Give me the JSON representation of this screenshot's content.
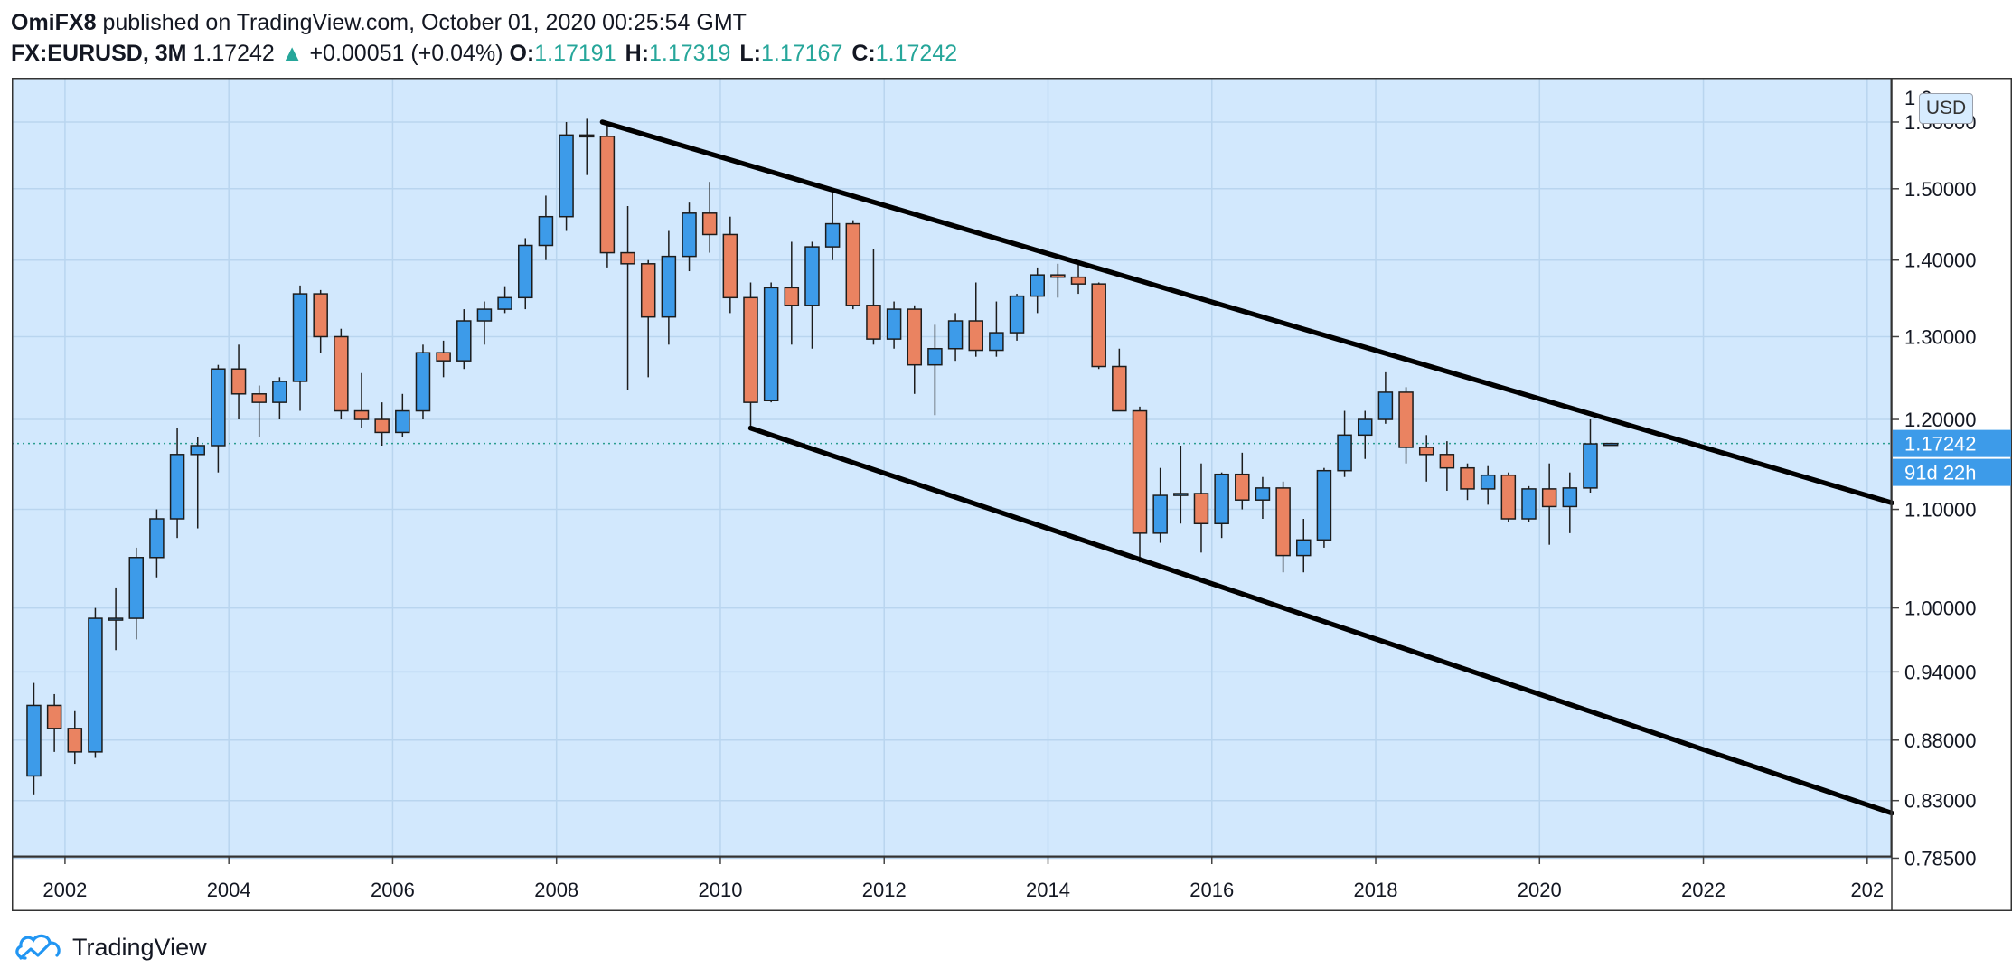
{
  "header": {
    "author": "OmiFX8",
    "published": "published on TradingView.com, October 01, 2020 00:25:54 GMT",
    "symbol": "FX:EURUSD, 3M",
    "price": "1.17242",
    "change_arrow": "▲",
    "change": "+0.00051 (+0.04%)",
    "ohlc": [
      {
        "key": "O:",
        "value": "1.17191"
      },
      {
        "key": "H:",
        "value": "1.17319"
      },
      {
        "key": "L:",
        "value": "1.17167"
      },
      {
        "key": "C:",
        "value": "1.17242"
      }
    ]
  },
  "brand": {
    "name": "TradingView",
    "icon": "tradingview-cloud-logo-icon"
  },
  "colors": {
    "background": "#d2e8fd",
    "grid": "#b9d5ef",
    "up": "#3d9be9",
    "down": "#ea8361",
    "wick": "#1c1c1c",
    "price_line": "#2a9d8f",
    "price_label": "#3d9be9",
    "trendline": "#000000"
  },
  "chart_data": {
    "type": "candlestick",
    "scale": "log",
    "currency_label": "USD",
    "last_price_label": "1.17242",
    "countdown_label": "91d 22h",
    "x_ticks": [
      "2002",
      "2004",
      "2006",
      "2008",
      "2010",
      "2012",
      "2014",
      "2016",
      "2018",
      "2020",
      "2022",
      "202"
    ],
    "y_ticks": [
      "1.60000",
      "1.50000",
      "1.40000",
      "1.30000",
      "1.20000",
      "1.10000",
      "1.00000",
      "0.94000",
      "0.88000",
      "0.83000",
      "0.78500"
    ],
    "y_top_partial_tick": "1 0",
    "xlim": [
      2001.35,
      2024.3
    ],
    "ylim": [
      0.786,
      1.67
    ],
    "candles": [
      {
        "t": 2001.62,
        "o": 0.85,
        "h": 0.93,
        "l": 0.835,
        "c": 0.91
      },
      {
        "t": 2001.87,
        "o": 0.91,
        "h": 0.92,
        "l": 0.87,
        "c": 0.89
      },
      {
        "t": 2002.12,
        "o": 0.89,
        "h": 0.905,
        "l": 0.86,
        "c": 0.87
      },
      {
        "t": 2002.37,
        "o": 0.87,
        "h": 1.0,
        "l": 0.865,
        "c": 0.99
      },
      {
        "t": 2002.62,
        "o": 0.99,
        "h": 1.02,
        "l": 0.96,
        "c": 0.99
      },
      {
        "t": 2002.87,
        "o": 0.99,
        "h": 1.06,
        "l": 0.97,
        "c": 1.05
      },
      {
        "t": 2003.12,
        "o": 1.05,
        "h": 1.1,
        "l": 1.03,
        "c": 1.09
      },
      {
        "t": 2003.37,
        "o": 1.09,
        "h": 1.19,
        "l": 1.07,
        "c": 1.16
      },
      {
        "t": 2003.62,
        "o": 1.16,
        "h": 1.18,
        "l": 1.08,
        "c": 1.17
      },
      {
        "t": 2003.87,
        "o": 1.17,
        "h": 1.265,
        "l": 1.14,
        "c": 1.26
      },
      {
        "t": 2004.12,
        "o": 1.26,
        "h": 1.29,
        "l": 1.2,
        "c": 1.23
      },
      {
        "t": 2004.37,
        "o": 1.23,
        "h": 1.24,
        "l": 1.18,
        "c": 1.22
      },
      {
        "t": 2004.62,
        "o": 1.22,
        "h": 1.25,
        "l": 1.2,
        "c": 1.245
      },
      {
        "t": 2004.87,
        "o": 1.245,
        "h": 1.366,
        "l": 1.21,
        "c": 1.355
      },
      {
        "t": 2005.12,
        "o": 1.355,
        "h": 1.36,
        "l": 1.28,
        "c": 1.3
      },
      {
        "t": 2005.37,
        "o": 1.3,
        "h": 1.31,
        "l": 1.2,
        "c": 1.21
      },
      {
        "t": 2005.62,
        "o": 1.21,
        "h": 1.255,
        "l": 1.19,
        "c": 1.2
      },
      {
        "t": 2005.87,
        "o": 1.2,
        "h": 1.22,
        "l": 1.17,
        "c": 1.185
      },
      {
        "t": 2006.12,
        "o": 1.185,
        "h": 1.23,
        "l": 1.18,
        "c": 1.21
      },
      {
        "t": 2006.37,
        "o": 1.21,
        "h": 1.29,
        "l": 1.2,
        "c": 1.28
      },
      {
        "t": 2006.62,
        "o": 1.28,
        "h": 1.295,
        "l": 1.25,
        "c": 1.27
      },
      {
        "t": 2006.87,
        "o": 1.27,
        "h": 1.335,
        "l": 1.26,
        "c": 1.32
      },
      {
        "t": 2007.12,
        "o": 1.32,
        "h": 1.345,
        "l": 1.29,
        "c": 1.335
      },
      {
        "t": 2007.37,
        "o": 1.335,
        "h": 1.365,
        "l": 1.33,
        "c": 1.35
      },
      {
        "t": 2007.62,
        "o": 1.35,
        "h": 1.43,
        "l": 1.335,
        "c": 1.42
      },
      {
        "t": 2007.87,
        "o": 1.42,
        "h": 1.49,
        "l": 1.4,
        "c": 1.46
      },
      {
        "t": 2008.12,
        "o": 1.46,
        "h": 1.6,
        "l": 1.44,
        "c": 1.58
      },
      {
        "t": 2008.37,
        "o": 1.58,
        "h": 1.605,
        "l": 1.52,
        "c": 1.578
      },
      {
        "t": 2008.62,
        "o": 1.578,
        "h": 1.6,
        "l": 1.39,
        "c": 1.41
      },
      {
        "t": 2008.87,
        "o": 1.41,
        "h": 1.475,
        "l": 1.235,
        "c": 1.395
      },
      {
        "t": 2009.12,
        "o": 1.395,
        "h": 1.4,
        "l": 1.25,
        "c": 1.325
      },
      {
        "t": 2009.37,
        "o": 1.325,
        "h": 1.44,
        "l": 1.29,
        "c": 1.405
      },
      {
        "t": 2009.62,
        "o": 1.405,
        "h": 1.48,
        "l": 1.385,
        "c": 1.465
      },
      {
        "t": 2009.87,
        "o": 1.465,
        "h": 1.51,
        "l": 1.41,
        "c": 1.435
      },
      {
        "t": 2010.12,
        "o": 1.435,
        "h": 1.46,
        "l": 1.33,
        "c": 1.35
      },
      {
        "t": 2010.37,
        "o": 1.35,
        "h": 1.37,
        "l": 1.19,
        "c": 1.22
      },
      {
        "t": 2010.62,
        "o": 1.222,
        "h": 1.37,
        "l": 1.22,
        "c": 1.363
      },
      {
        "t": 2010.87,
        "o": 1.363,
        "h": 1.425,
        "l": 1.29,
        "c": 1.34
      },
      {
        "t": 2011.12,
        "o": 1.34,
        "h": 1.425,
        "l": 1.285,
        "c": 1.418
      },
      {
        "t": 2011.37,
        "o": 1.418,
        "h": 1.495,
        "l": 1.4,
        "c": 1.45
      },
      {
        "t": 2011.62,
        "o": 1.45,
        "h": 1.455,
        "l": 1.335,
        "c": 1.34
      },
      {
        "t": 2011.87,
        "o": 1.34,
        "h": 1.415,
        "l": 1.29,
        "c": 1.297
      },
      {
        "t": 2012.12,
        "o": 1.297,
        "h": 1.345,
        "l": 1.285,
        "c": 1.335
      },
      {
        "t": 2012.37,
        "o": 1.335,
        "h": 1.34,
        "l": 1.23,
        "c": 1.265
      },
      {
        "t": 2012.62,
        "o": 1.265,
        "h": 1.315,
        "l": 1.205,
        "c": 1.285
      },
      {
        "t": 2012.87,
        "o": 1.285,
        "h": 1.33,
        "l": 1.27,
        "c": 1.32
      },
      {
        "t": 2013.12,
        "o": 1.32,
        "h": 1.37,
        "l": 1.275,
        "c": 1.283
      },
      {
        "t": 2013.37,
        "o": 1.283,
        "h": 1.345,
        "l": 1.275,
        "c": 1.305
      },
      {
        "t": 2013.62,
        "o": 1.305,
        "h": 1.355,
        "l": 1.295,
        "c": 1.352
      },
      {
        "t": 2013.87,
        "o": 1.352,
        "h": 1.39,
        "l": 1.33,
        "c": 1.38
      },
      {
        "t": 2014.12,
        "o": 1.38,
        "h": 1.395,
        "l": 1.35,
        "c": 1.377
      },
      {
        "t": 2014.37,
        "o": 1.377,
        "h": 1.398,
        "l": 1.355,
        "c": 1.368
      },
      {
        "t": 2014.62,
        "o": 1.368,
        "h": 1.37,
        "l": 1.26,
        "c": 1.263
      },
      {
        "t": 2014.87,
        "o": 1.263,
        "h": 1.285,
        "l": 1.21,
        "c": 1.21
      },
      {
        "t": 2015.12,
        "o": 1.21,
        "h": 1.215,
        "l": 1.045,
        "c": 1.075
      },
      {
        "t": 2015.37,
        "o": 1.075,
        "h": 1.145,
        "l": 1.065,
        "c": 1.115
      },
      {
        "t": 2015.62,
        "o": 1.115,
        "h": 1.17,
        "l": 1.085,
        "c": 1.117
      },
      {
        "t": 2015.87,
        "o": 1.117,
        "h": 1.15,
        "l": 1.055,
        "c": 1.085
      },
      {
        "t": 2016.12,
        "o": 1.085,
        "h": 1.14,
        "l": 1.07,
        "c": 1.138
      },
      {
        "t": 2016.37,
        "o": 1.138,
        "h": 1.162,
        "l": 1.1,
        "c": 1.11
      },
      {
        "t": 2016.62,
        "o": 1.11,
        "h": 1.135,
        "l": 1.09,
        "c": 1.123
      },
      {
        "t": 2016.87,
        "o": 1.123,
        "h": 1.13,
        "l": 1.035,
        "c": 1.052
      },
      {
        "t": 2017.12,
        "o": 1.052,
        "h": 1.09,
        "l": 1.035,
        "c": 1.068
      },
      {
        "t": 2017.37,
        "o": 1.068,
        "h": 1.145,
        "l": 1.06,
        "c": 1.142
      },
      {
        "t": 2017.62,
        "o": 1.142,
        "h": 1.21,
        "l": 1.135,
        "c": 1.182
      },
      {
        "t": 2017.87,
        "o": 1.182,
        "h": 1.21,
        "l": 1.155,
        "c": 1.2
      },
      {
        "t": 2018.12,
        "o": 1.2,
        "h": 1.256,
        "l": 1.195,
        "c": 1.232
      },
      {
        "t": 2018.37,
        "o": 1.232,
        "h": 1.238,
        "l": 1.15,
        "c": 1.168
      },
      {
        "t": 2018.62,
        "o": 1.168,
        "h": 1.182,
        "l": 1.13,
        "c": 1.16
      },
      {
        "t": 2018.87,
        "o": 1.16,
        "h": 1.175,
        "l": 1.12,
        "c": 1.145
      },
      {
        "t": 2019.12,
        "o": 1.145,
        "h": 1.15,
        "l": 1.11,
        "c": 1.122
      },
      {
        "t": 2019.37,
        "o": 1.122,
        "h": 1.147,
        "l": 1.105,
        "c": 1.137
      },
      {
        "t": 2019.62,
        "o": 1.137,
        "h": 1.14,
        "l": 1.087,
        "c": 1.09
      },
      {
        "t": 2019.87,
        "o": 1.09,
        "h": 1.125,
        "l": 1.087,
        "c": 1.122
      },
      {
        "t": 2020.12,
        "o": 1.122,
        "h": 1.15,
        "l": 1.063,
        "c": 1.103
      },
      {
        "t": 2020.37,
        "o": 1.103,
        "h": 1.14,
        "l": 1.075,
        "c": 1.123
      },
      {
        "t": 2020.62,
        "o": 1.123,
        "h": 1.2,
        "l": 1.118,
        "c": 1.172
      },
      {
        "t": 2020.87,
        "o": 1.1719,
        "h": 1.1732,
        "l": 1.1717,
        "c": 1.1724
      }
    ],
    "trendlines": [
      {
        "name": "upper-channel-line",
        "x1": 2008.56,
        "y1": 1.6,
        "x2": 2024.3,
        "y2": 1.107
      },
      {
        "name": "lower-channel-line",
        "x1": 2010.37,
        "y1": 1.19,
        "x2": 2024.3,
        "y2": 0.82
      }
    ]
  }
}
